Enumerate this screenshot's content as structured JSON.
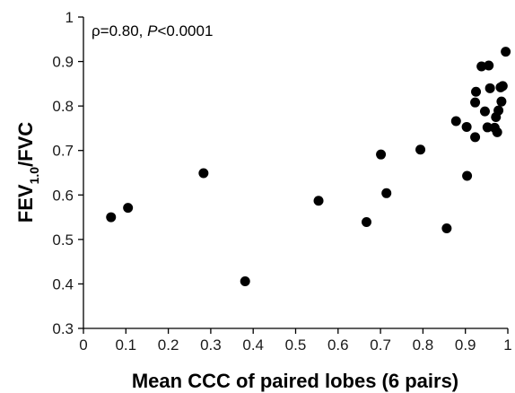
{
  "chart_data": {
    "type": "scatter",
    "annotation": {
      "rho": "ρ=0.80, ",
      "p_symbol": "P",
      "p_value": "<0.0001"
    },
    "xlabel": "Mean CCC of paired lobes (6 pairs)",
    "ylabel": {
      "main": "FEV",
      "subscript": "1.0",
      "suffix": "/FVC"
    },
    "xlim": [
      0,
      1
    ],
    "ylim": [
      0.3,
      1
    ],
    "x_ticks": [
      0,
      0.1,
      0.2,
      0.3,
      0.4,
      0.5,
      0.6,
      0.7,
      0.8,
      0.9,
      1
    ],
    "x_tick_labels": [
      "0",
      "0.1",
      "0.2",
      "0.3",
      "0.4",
      "0.5",
      "0.6",
      "0.7",
      "0.8",
      "0.9",
      "1"
    ],
    "y_ticks": [
      0.3,
      0.4,
      0.5,
      0.6,
      0.7,
      0.8,
      0.9,
      1
    ],
    "y_tick_labels": [
      "0.3",
      "0.4",
      "0.5",
      "0.6",
      "0.7",
      "0.8",
      "0.9",
      "1"
    ],
    "grid": false,
    "marker_color": "#000000",
    "points": [
      {
        "x": 0.065,
        "y": 0.55
      },
      {
        "x": 0.105,
        "y": 0.571
      },
      {
        "x": 0.283,
        "y": 0.649
      },
      {
        "x": 0.381,
        "y": 0.406
      },
      {
        "x": 0.554,
        "y": 0.587
      },
      {
        "x": 0.667,
        "y": 0.539
      },
      {
        "x": 0.701,
        "y": 0.691
      },
      {
        "x": 0.714,
        "y": 0.604
      },
      {
        "x": 0.794,
        "y": 0.702
      },
      {
        "x": 0.856,
        "y": 0.525
      },
      {
        "x": 0.878,
        "y": 0.766
      },
      {
        "x": 0.903,
        "y": 0.753
      },
      {
        "x": 0.904,
        "y": 0.643
      },
      {
        "x": 0.923,
        "y": 0.73
      },
      {
        "x": 0.923,
        "y": 0.808
      },
      {
        "x": 0.925,
        "y": 0.832
      },
      {
        "x": 0.938,
        "y": 0.889
      },
      {
        "x": 0.946,
        "y": 0.788
      },
      {
        "x": 0.952,
        "y": 0.752
      },
      {
        "x": 0.955,
        "y": 0.891
      },
      {
        "x": 0.958,
        "y": 0.84
      },
      {
        "x": 0.969,
        "y": 0.751
      },
      {
        "x": 0.972,
        "y": 0.775
      },
      {
        "x": 0.975,
        "y": 0.741
      },
      {
        "x": 0.978,
        "y": 0.79
      },
      {
        "x": 0.983,
        "y": 0.842
      },
      {
        "x": 0.985,
        "y": 0.81
      },
      {
        "x": 0.988,
        "y": 0.845
      },
      {
        "x": 0.995,
        "y": 0.922
      }
    ]
  }
}
